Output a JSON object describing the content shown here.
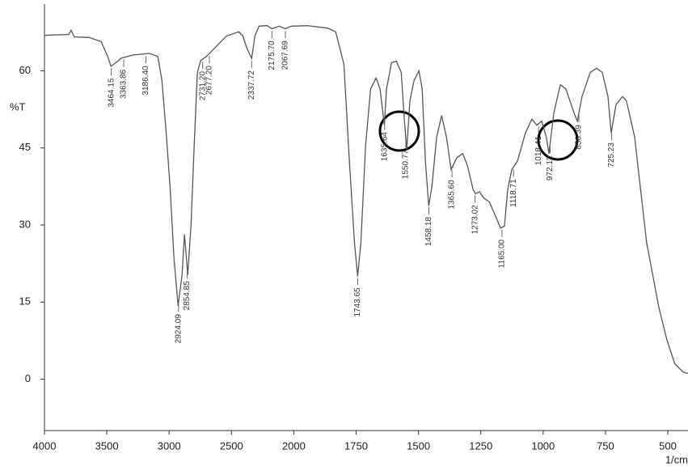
{
  "chart_data": {
    "type": "line",
    "ylabel": "%T",
    "xlabel": "1/cm",
    "xlim": [
      4000,
      419
    ],
    "ylim": [
      -10,
      73
    ],
    "xbreak": {
      "value": 2000,
      "ratio": 2
    },
    "xticks": [
      4000,
      3500,
      3000,
      2500,
      2000,
      1750,
      1500,
      1250,
      1000,
      750,
      500
    ],
    "yticks": [
      60,
      45,
      30,
      15,
      0
    ],
    "color": "#555555",
    "x": [
      4000,
      3805,
      3786,
      3760,
      3643,
      3545,
      3493,
      3467,
      3416,
      3383,
      3286,
      3156,
      3091,
      3058,
      3026,
      2993,
      2961,
      2928,
      2896,
      2877,
      2851,
      2825,
      2799,
      2773,
      2747,
      2701,
      2636,
      2539,
      2441,
      2409,
      2376,
      2338,
      2312,
      2279,
      2214,
      2175,
      2117,
      2071,
      2019,
      1945,
      1864,
      1832,
      1799,
      1777,
      1757,
      1744,
      1731,
      1712,
      1692,
      1670,
      1654,
      1637,
      1628,
      1608,
      1589,
      1569,
      1556,
      1547,
      1534,
      1518,
      1498,
      1485,
      1472,
      1459,
      1446,
      1427,
      1407,
      1388,
      1369,
      1346,
      1323,
      1304,
      1281,
      1271,
      1255,
      1239,
      1216,
      1194,
      1171,
      1155,
      1142,
      1126,
      1103,
      1071,
      1045,
      1025,
      1006,
      987,
      977,
      957,
      931,
      909,
      876,
      863,
      844,
      811,
      786,
      763,
      740,
      727,
      708,
      682,
      666,
      633,
      585,
      536,
      504,
      472,
      439,
      419
    ],
    "values": [
      66.9,
      67.1,
      67.9,
      66.6,
      66.5,
      65.7,
      62.8,
      60.9,
      61.8,
      62.5,
      63.1,
      63.4,
      62.8,
      58.1,
      48.7,
      37.6,
      23.5,
      14.3,
      20.3,
      28.2,
      20.3,
      29.8,
      45.5,
      59.7,
      62.0,
      62.8,
      64.4,
      66.8,
      67.6,
      66.8,
      64.4,
      62.4,
      66.8,
      68.7,
      68.8,
      68.2,
      68.7,
      68.2,
      68.7,
      68.8,
      68.3,
      67.6,
      61.3,
      42.4,
      26.6,
      20.0,
      26.6,
      45.5,
      56.5,
      58.6,
      56.5,
      49.4,
      56.5,
      61.6,
      61.9,
      59.7,
      50.2,
      44.7,
      54.2,
      58.1,
      60.0,
      56.5,
      42.4,
      33.7,
      37.6,
      47.1,
      51.3,
      47.1,
      40.8,
      43.1,
      43.9,
      41.6,
      36.9,
      36.1,
      36.5,
      35.3,
      34.5,
      32.1,
      29.4,
      29.8,
      36.9,
      40.8,
      42.4,
      47.9,
      50.6,
      49.4,
      50.2,
      47.1,
      43.9,
      51.8,
      57.3,
      56.5,
      51.8,
      50.2,
      55.0,
      59.7,
      60.5,
      59.7,
      55.0,
      47.9,
      53.4,
      55.0,
      54.2,
      47.1,
      26.6,
      14.0,
      7.7,
      3.0,
      1.4,
      1.1
    ],
    "peaks": [
      {
        "value": 3464.15,
        "label": "3464.15"
      },
      {
        "value": 3363.86,
        "label": "3363.86"
      },
      {
        "value": 3186.4,
        "label": "3186.40"
      },
      {
        "value": 2924.09,
        "label": "2924.09"
      },
      {
        "value": 2854.85,
        "label": "2854.85"
      },
      {
        "value": 2731.2,
        "label": "2731.20"
      },
      {
        "value": 2677.2,
        "label": "2677.20"
      },
      {
        "value": 2337.72,
        "label": "2337.72"
      },
      {
        "value": 2175.7,
        "label": "2175.70"
      },
      {
        "value": 2067.69,
        "label": "2067.69"
      },
      {
        "value": 1743.65,
        "label": "1743.65"
      },
      {
        "value": 1635.64,
        "label": "1635.64"
      },
      {
        "value": 1550.77,
        "label": "1550.77"
      },
      {
        "value": 1458.18,
        "label": "1458.18"
      },
      {
        "value": 1365.6,
        "label": "1365.60"
      },
      {
        "value": 1273.02,
        "label": "1273.02"
      },
      {
        "value": 1165.0,
        "label": "1165.00"
      },
      {
        "value": 1118.71,
        "label": "1118.71"
      },
      {
        "value": 1018.41,
        "label": "1018.41"
      },
      {
        "value": 972.12,
        "label": "972.12"
      },
      {
        "value": 856.39,
        "label": "856.39"
      },
      {
        "value": 725.23,
        "label": "725.23"
      }
    ]
  }
}
